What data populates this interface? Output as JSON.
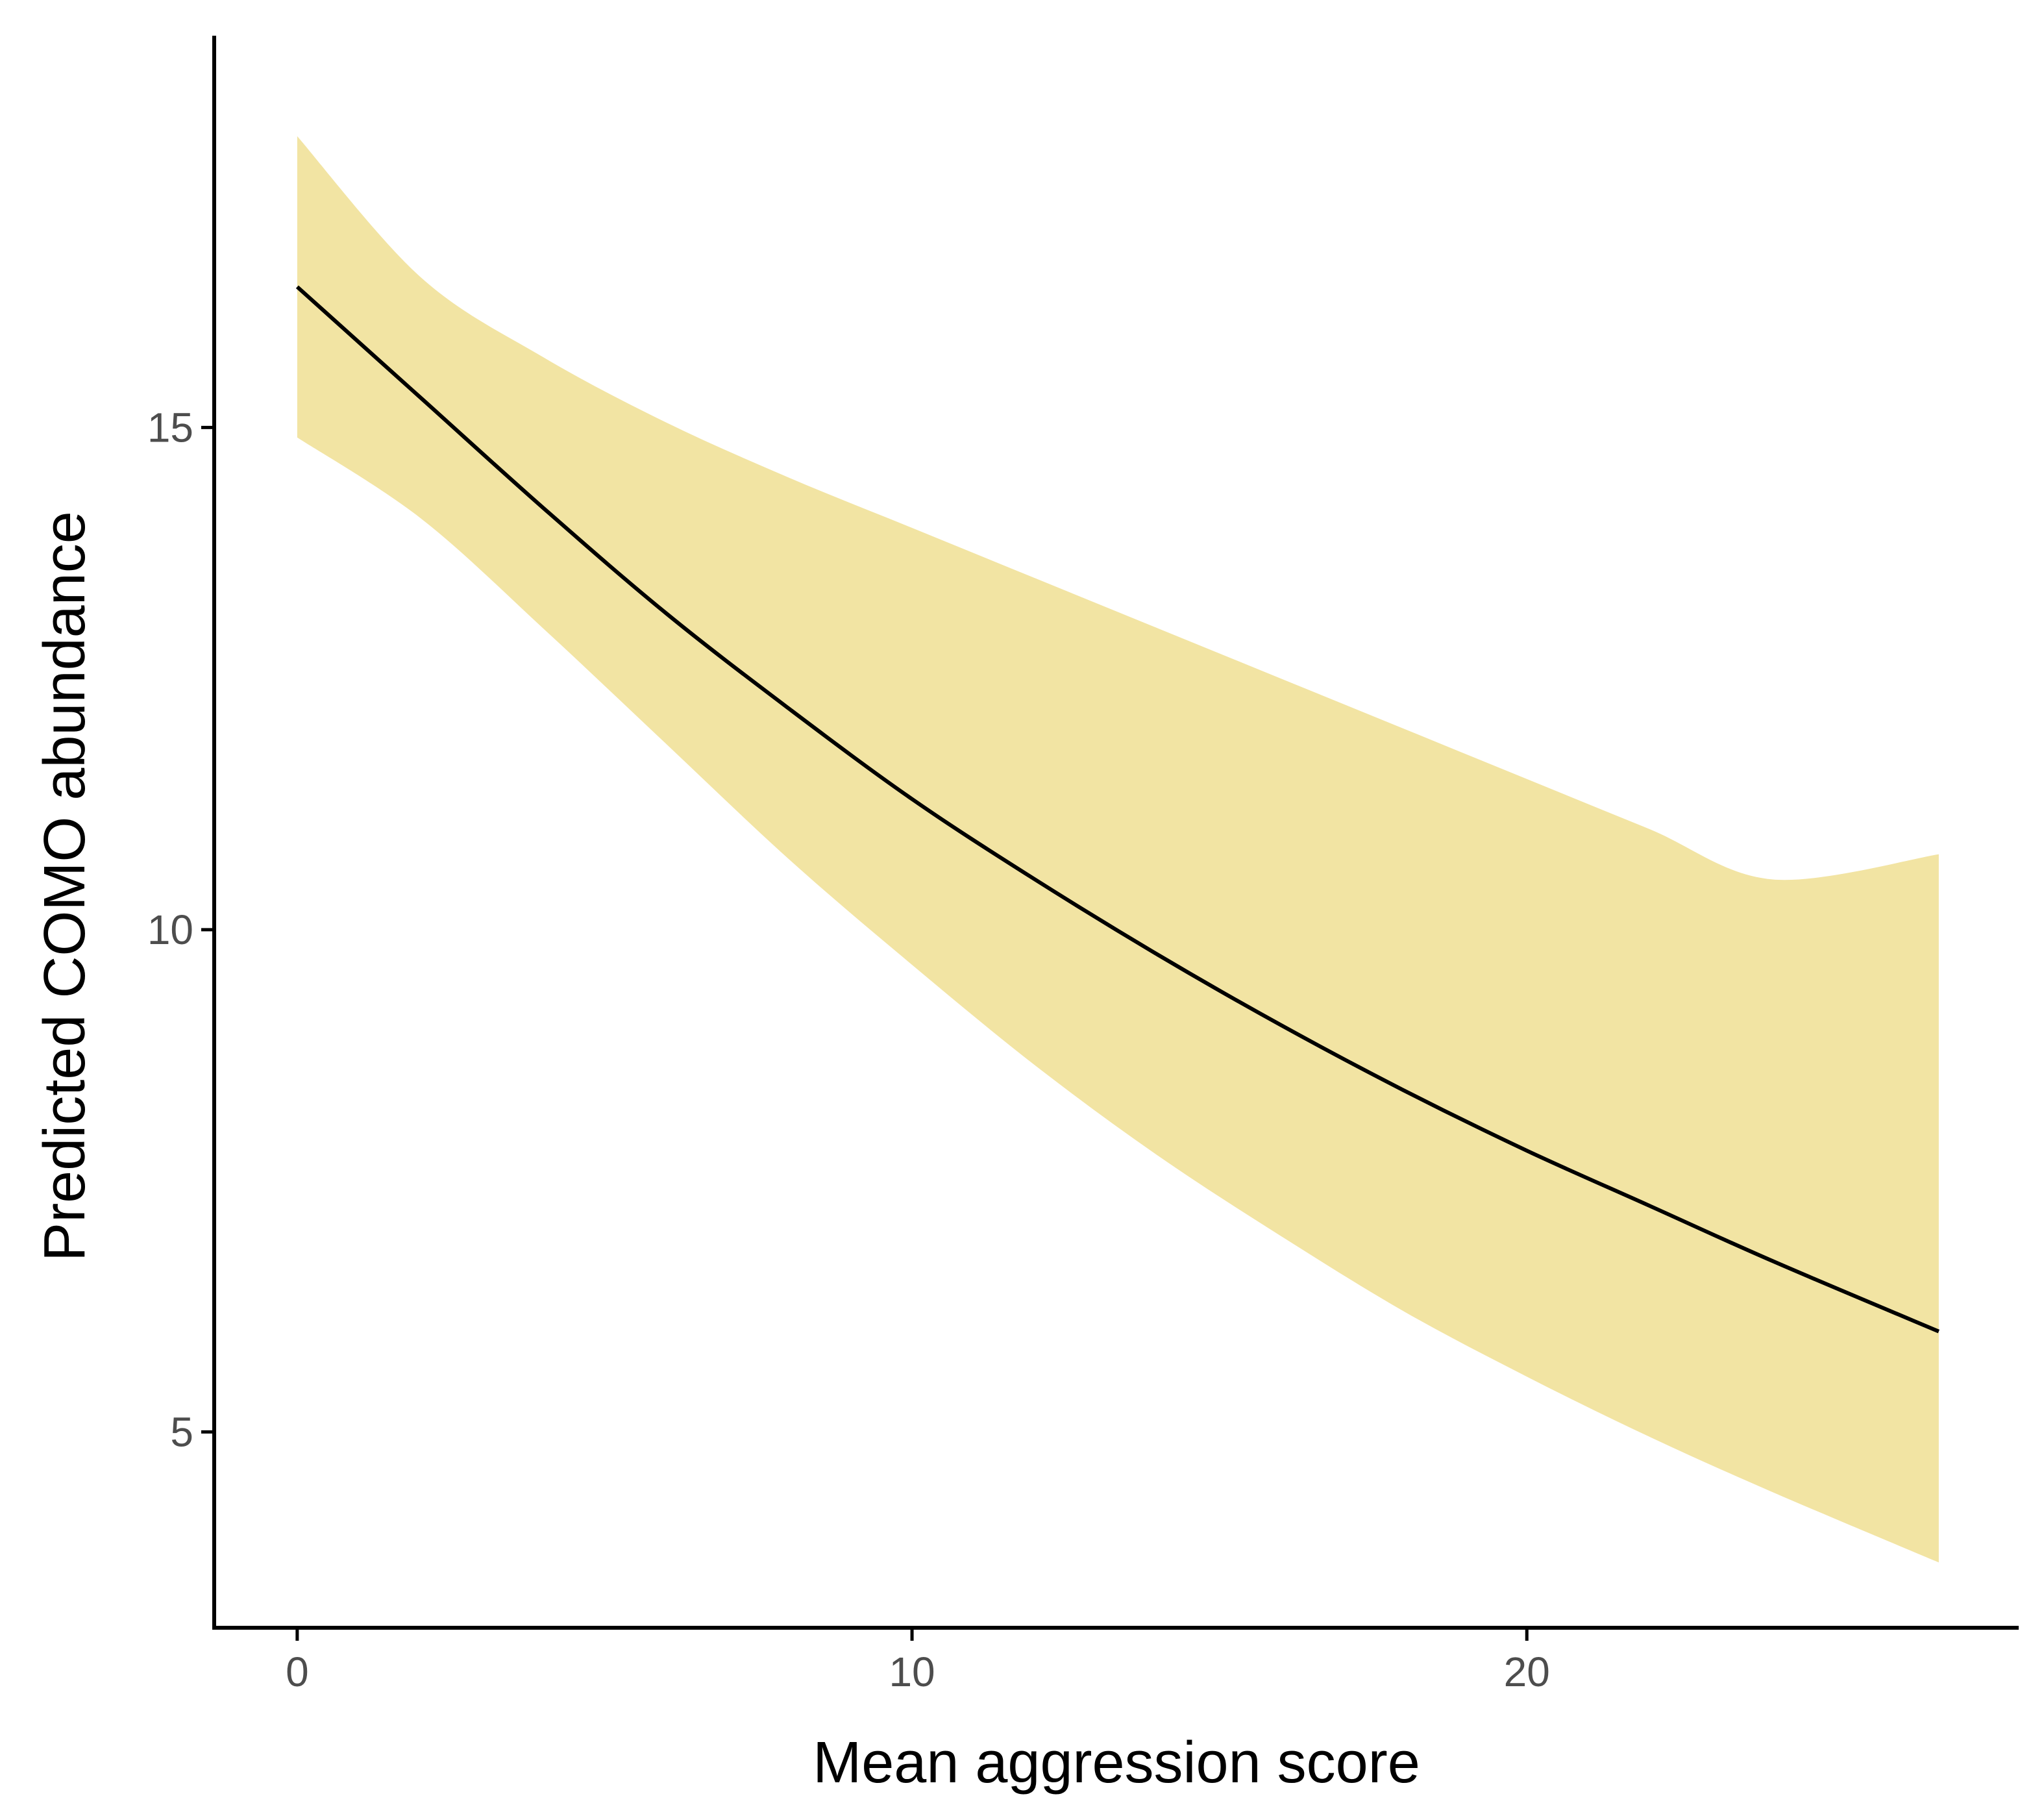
{
  "chart_data": {
    "type": "line",
    "title": "",
    "xlabel": "Mean aggression score",
    "ylabel": "Predicted COMO abundance",
    "xlim": [
      -1.35,
      28.0
    ],
    "ylim": [
      3.05,
      18.9
    ],
    "x_ticks": [
      0,
      10,
      20
    ],
    "y_ticks": [
      5,
      10,
      15
    ],
    "grid": false,
    "legend": "none",
    "colors": {
      "line": "#000000",
      "ribbon": "#f2e4a3",
      "axis": "#000000",
      "tick_text": "#4d4d4d"
    },
    "series": [
      {
        "x": [
          0,
          2,
          4,
          6,
          8,
          10,
          12,
          14,
          16,
          18,
          20,
          22,
          24,
          26.7
        ],
        "y": [
          16.4,
          15.3,
          14.2,
          13.15,
          12.2,
          11.3,
          10.5,
          9.75,
          9.05,
          8.4,
          7.8,
          7.25,
          6.7,
          6.0
        ],
        "lower": [
          14.9,
          14.1,
          13.0,
          11.85,
          10.7,
          9.65,
          8.65,
          7.75,
          6.95,
          6.2,
          5.55,
          4.95,
          4.4,
          3.7
        ],
        "upper": [
          17.9,
          16.5,
          15.7,
          15.05,
          14.5,
          14.0,
          13.5,
          13.0,
          12.5,
          12.0,
          11.5,
          11.0,
          10.5,
          10.75
        ]
      }
    ]
  }
}
